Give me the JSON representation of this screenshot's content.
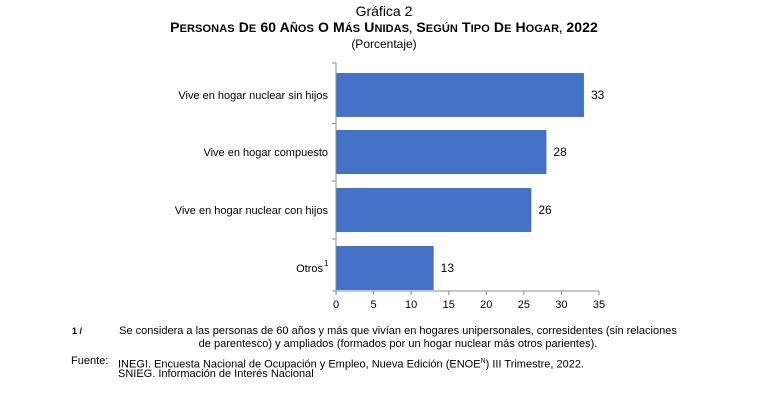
{
  "figure_label": "Gráfica 2",
  "title": "Personas de 60 años o más unidas, según tipo de hogar, 2022",
  "unit_label": "(Porcentaje)",
  "colors": {
    "bar": "#4472C4",
    "axis": "#8C8C8C",
    "text": "#000000"
  },
  "chart_data": {
    "type": "bar",
    "orientation": "horizontal",
    "categories": [
      "Vive en hogar nuclear sin hijos",
      "Vive en hogar compuesto",
      "Vive en hogar nuclear con hijos",
      "Otros"
    ],
    "category_superscripts": [
      "",
      "",
      "",
      "1"
    ],
    "values": [
      33,
      28,
      26,
      13
    ],
    "xlim": [
      0,
      35
    ],
    "xticks": [
      0,
      5,
      10,
      15,
      20,
      25,
      30,
      35
    ],
    "grid": false,
    "data_labels": true
  },
  "footnote": {
    "marker": "1 /",
    "text": "Se considera a las personas de 60 años y más que vivían en hogares unipersonales, corresidentes (sin relaciones de parentesco) y ampliados (formados por un hogar nuclear más otros parientes)."
  },
  "source": {
    "label": "Fuente:",
    "line1_pre": "INEGI. Encuesta Nacional de Ocupación y Empleo, Nueva Edición (ENOE",
    "line1_sup": "N",
    "line1_post": ") III Trimestre, 2022.",
    "line2": "SNIEG. Información de Interés Nacional"
  }
}
